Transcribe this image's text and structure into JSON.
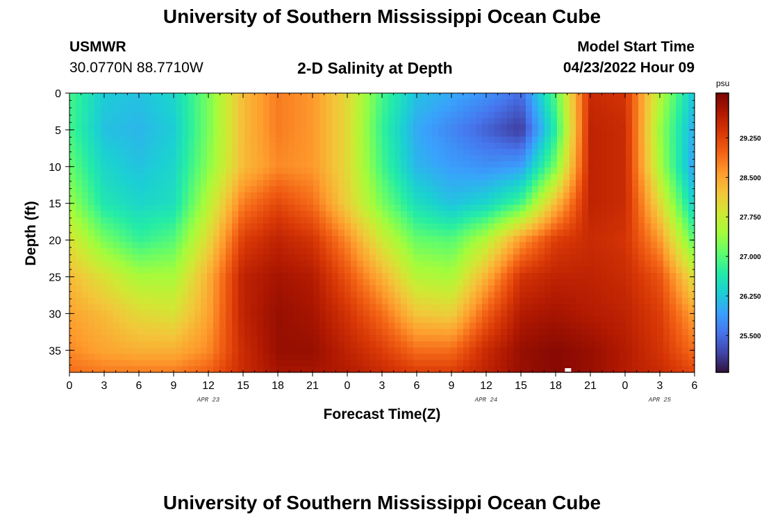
{
  "page": {
    "title_top": "University of Southern Mississippi Ocean Cube",
    "title_bottom": "University of Southern Mississippi Ocean Cube",
    "station_name": "USMWR",
    "station_coords": "30.0770N  88.7710W",
    "plot_title": "2-D Salinity at Depth",
    "model_start_label": "Model Start Time",
    "model_start_value": "04/23/2022 Hour 09"
  },
  "chart_data": {
    "type": "heatmap",
    "title": "2-D Salinity at Depth",
    "xlabel": "Forecast Time(Z)",
    "ylabel": "Depth (ft)",
    "x_tick_labels": [
      "0",
      "3",
      "6",
      "9",
      "12",
      "15",
      "18",
      "21",
      "0",
      "3",
      "6",
      "9",
      "12",
      "15",
      "18",
      "21",
      "0",
      "3",
      "6"
    ],
    "x_hours": [
      0,
      3,
      6,
      9,
      12,
      15,
      18,
      21,
      24,
      27,
      30,
      33,
      36,
      39,
      42,
      45,
      48,
      51,
      54
    ],
    "xlim": [
      0,
      54
    ],
    "date_labels": [
      {
        "text": "APR 23",
        "hour": 12
      },
      {
        "text": "APR 24",
        "hour": 36
      },
      {
        "text": "APR 25",
        "hour": 51
      }
    ],
    "y_tick_labels": [
      "0",
      "5",
      "10",
      "15",
      "20",
      "25",
      "30",
      "35"
    ],
    "y_values": [
      0,
      5,
      10,
      15,
      20,
      25,
      30,
      35
    ],
    "ylim": [
      0,
      38
    ],
    "y_inverted": true,
    "colorbar": {
      "unit": "psu",
      "range": [
        24.8,
        30.1
      ],
      "tick_labels": [
        "29.250",
        "28.500",
        "27.750",
        "27.000",
        "26.250",
        "25.500"
      ],
      "tick_values": [
        29.25,
        28.5,
        27.75,
        27.0,
        26.25,
        25.5
      ],
      "colors": [
        "#30123b",
        "#4145ab",
        "#4675ed",
        "#39a2fc",
        "#1bcfd4",
        "#24eca6",
        "#61fc6c",
        "#a4fc3b",
        "#d1e834",
        "#f3c63a",
        "#fe9b2d",
        "#f36315",
        "#d93806",
        "#b11901",
        "#7a0402"
      ]
    },
    "depth_rows": [
      0,
      5,
      10,
      15,
      20,
      25,
      30,
      35,
      38
    ],
    "time_cols": [
      0,
      3,
      6,
      9,
      12,
      15,
      18,
      21,
      24,
      27,
      30,
      33,
      36,
      39,
      42,
      45,
      48,
      51,
      54
    ],
    "salinity_psu": [
      [
        26.9,
        26.3,
        26.2,
        26.4,
        27.2,
        28.3,
        28.8,
        28.6,
        28.0,
        26.9,
        26.2,
        26.0,
        25.8,
        25.5,
        27.0,
        29.5,
        29.4,
        27.6,
        26.2
      ],
      [
        26.9,
        26.2,
        26.1,
        26.3,
        27.2,
        28.3,
        28.8,
        28.6,
        28.0,
        26.8,
        26.0,
        25.7,
        25.4,
        25.1,
        26.7,
        29.6,
        29.5,
        27.4,
        26.0
      ],
      [
        27.1,
        26.4,
        26.2,
        26.4,
        27.3,
        28.3,
        28.7,
        28.6,
        28.0,
        26.9,
        26.1,
        25.9,
        25.8,
        25.9,
        27.2,
        29.6,
        29.5,
        27.5,
        25.9
      ],
      [
        27.4,
        26.6,
        26.4,
        26.5,
        27.6,
        28.8,
        29.2,
        28.9,
        28.1,
        27.2,
        26.5,
        26.2,
        26.4,
        26.9,
        28.3,
        29.6,
        29.5,
        28.0,
        26.3
      ],
      [
        27.9,
        27.2,
        26.8,
        27.0,
        28.0,
        29.3,
        29.6,
        29.4,
        28.7,
        27.8,
        27.1,
        27.0,
        27.6,
        28.6,
        29.3,
        29.5,
        29.4,
        28.6,
        27.0
      ],
      [
        28.3,
        27.9,
        27.5,
        27.5,
        28.4,
        29.6,
        29.8,
        29.7,
        29.1,
        28.4,
        27.6,
        27.5,
        28.4,
        29.4,
        29.6,
        29.6,
        29.5,
        29.1,
        27.9
      ],
      [
        28.5,
        28.3,
        28.0,
        27.9,
        28.5,
        29.6,
        29.9,
        29.8,
        29.4,
        28.9,
        28.2,
        28.1,
        29.0,
        29.7,
        29.8,
        29.7,
        29.6,
        29.3,
        28.5
      ],
      [
        28.7,
        28.5,
        28.4,
        28.4,
        28.7,
        29.5,
        29.9,
        29.9,
        29.6,
        29.3,
        28.9,
        28.9,
        29.5,
        29.9,
        30.0,
        29.9,
        29.7,
        29.4,
        28.9
      ],
      [
        28.9,
        28.8,
        28.8,
        28.8,
        29.0,
        29.5,
        29.8,
        29.8,
        29.7,
        29.5,
        29.3,
        29.3,
        29.6,
        29.9,
        30.0,
        29.9,
        29.7,
        29.5,
        29.2
      ]
    ]
  }
}
